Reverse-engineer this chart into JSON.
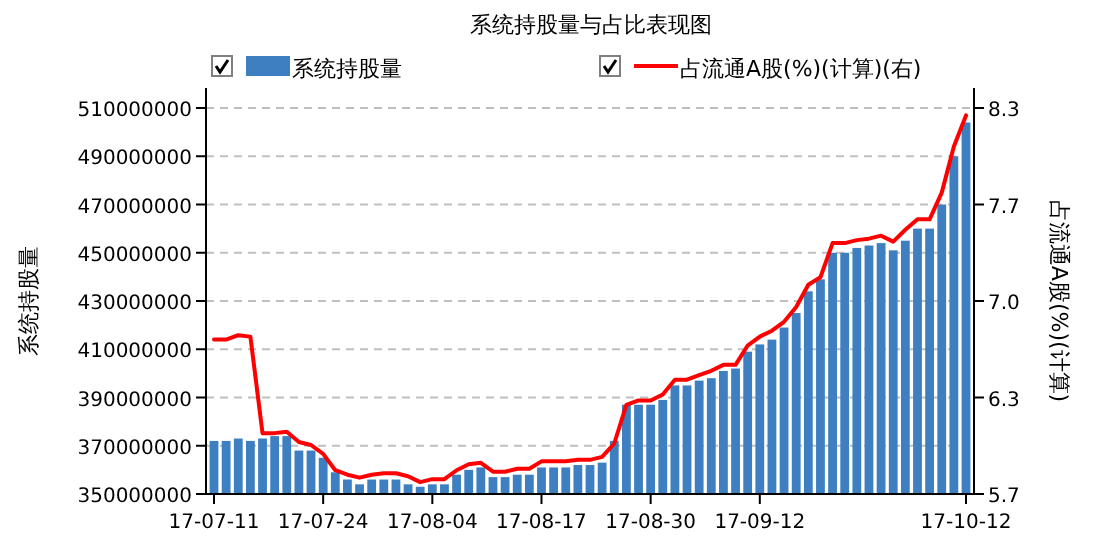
{
  "chart_data": {
    "type": "bar",
    "title": "系统持股量与占比表现图",
    "ylabel": "系统持股量",
    "y2label": "占流通A股(%)(计算)",
    "categories": [
      "17-07-11",
      null,
      null,
      null,
      null,
      null,
      null,
      null,
      null,
      "17-07-24",
      null,
      null,
      null,
      null,
      null,
      null,
      null,
      null,
      "17-08-04",
      null,
      null,
      null,
      null,
      null,
      null,
      null,
      null,
      "17-08-17",
      null,
      null,
      null,
      null,
      null,
      null,
      null,
      null,
      "17-08-30",
      null,
      null,
      null,
      null,
      null,
      null,
      null,
      null,
      "17-09-12",
      null,
      null,
      null,
      null,
      null,
      null,
      null,
      null,
      null,
      null,
      null,
      null,
      null,
      null,
      null,
      null,
      "17-10-12"
    ],
    "series": [
      {
        "name": "系统持股量",
        "color": "#3d7fc0",
        "values": [
          372000000,
          372000000,
          373000000,
          372000000,
          373000000,
          374000000,
          374000000,
          368000000,
          368000000,
          365000000,
          359000000,
          356000000,
          354000000,
          356000000,
          356000000,
          356000000,
          354000000,
          353000000,
          354000000,
          354000000,
          358000000,
          360000000,
          361000000,
          357000000,
          357000000,
          358000000,
          358000000,
          361000000,
          361000000,
          361000000,
          362000000,
          362000000,
          363000000,
          372000000,
          387000000,
          387000000,
          387000000,
          389000000,
          395000000,
          395000000,
          397000000,
          398000000,
          401000000,
          402000000,
          409000000,
          412000000,
          414000000,
          419000000,
          425000000,
          434000000,
          439000000,
          450000000,
          450000000,
          452000000,
          453000000,
          454000000,
          451000000,
          455000000,
          460000000,
          460000000,
          470000000,
          490000000,
          504000000
        ]
      },
      {
        "name": "占流通A股(%)(计算)(右)",
        "type": "line",
        "axis": "y2",
        "color": "#ff0000",
        "values": [
          6.74,
          6.74,
          6.77,
          6.76,
          6.11,
          6.11,
          6.12,
          6.05,
          6.03,
          5.97,
          5.86,
          5.83,
          5.81,
          5.83,
          5.84,
          5.84,
          5.82,
          5.78,
          5.8,
          5.8,
          5.86,
          5.9,
          5.91,
          5.85,
          5.85,
          5.87,
          5.87,
          5.92,
          5.92,
          5.92,
          5.93,
          5.93,
          5.95,
          6.04,
          6.3,
          6.33,
          6.33,
          6.37,
          6.47,
          6.47,
          6.5,
          6.53,
          6.57,
          6.57,
          6.7,
          6.76,
          6.8,
          6.86,
          6.96,
          7.11,
          7.16,
          7.39,
          7.39,
          7.41,
          7.42,
          7.44,
          7.4,
          7.48,
          7.55,
          7.55,
          7.73,
          8.04,
          8.25
        ]
      }
    ],
    "ylim": [
      350000000,
      510000000
    ],
    "yticks": [
      350000000,
      370000000,
      390000000,
      410000000,
      430000000,
      450000000,
      470000000,
      490000000,
      510000000
    ],
    "y2lim": [
      5.7,
      8.3
    ],
    "y2ticks": [
      5.7,
      {
        "value": 6.35,
        "label": "6.3"
      },
      {
        "value": 7,
        "label": "7.0"
      },
      {
        "value": 7.65,
        "label": "7.7"
      },
      8.3
    ],
    "grid": "y",
    "legend": "top"
  }
}
